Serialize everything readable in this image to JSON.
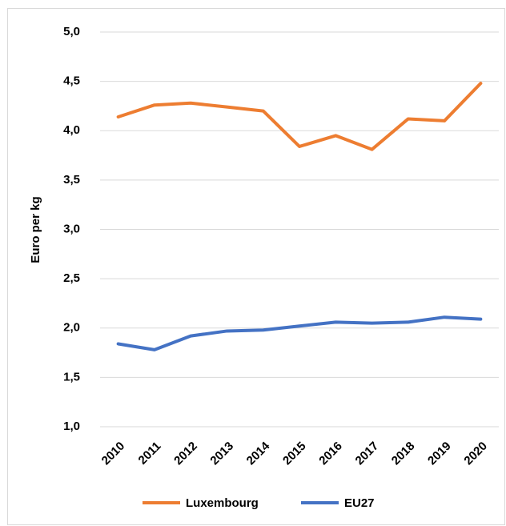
{
  "chart_data": {
    "type": "line",
    "y_label": "Euro per kg",
    "categories": [
      "2010",
      "2011",
      "2012",
      "2013",
      "2014",
      "2015",
      "2016",
      "2017",
      "2018",
      "2019",
      "2020"
    ],
    "series": [
      {
        "name": "Luxembourg",
        "color": "#ed7d31",
        "values": [
          4.14,
          4.26,
          4.28,
          4.24,
          4.2,
          3.84,
          3.95,
          3.81,
          4.12,
          4.1,
          4.48
        ]
      },
      {
        "name": "EU27",
        "color": "#4472c4",
        "values": [
          1.84,
          1.78,
          1.92,
          1.97,
          1.98,
          2.02,
          2.06,
          2.05,
          2.06,
          2.11,
          2.09
        ]
      }
    ],
    "ylim": [
      1.0,
      5.0
    ],
    "yticks": [
      {
        "value": 1.0,
        "label": "1,0"
      },
      {
        "value": 1.5,
        "label": "1,5"
      },
      {
        "value": 2.0,
        "label": "2,0"
      },
      {
        "value": 2.5,
        "label": "2,5"
      },
      {
        "value": 3.0,
        "label": "3,0"
      },
      {
        "value": 3.5,
        "label": "3,5"
      },
      {
        "value": 4.0,
        "label": "4,0"
      },
      {
        "value": 4.5,
        "label": "4,5"
      },
      {
        "value": 5.0,
        "label": "5,0"
      }
    ],
    "grid": true
  }
}
